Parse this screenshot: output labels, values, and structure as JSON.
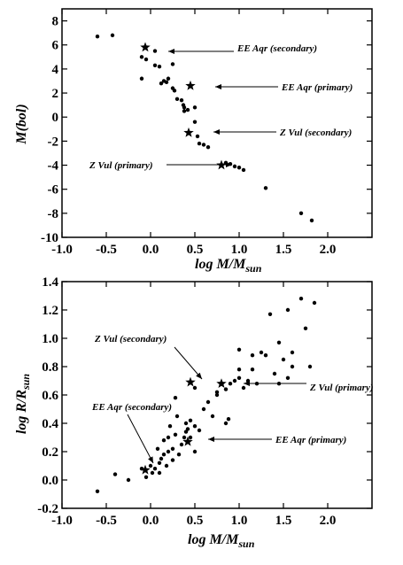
{
  "chart_data": [
    {
      "type": "scatter",
      "xlabel": "log M/M",
      "xlabel_sub": "sun",
      "ylabel": "M(bol)",
      "xlim": [
        -1.0,
        2.5
      ],
      "ylim": [
        -10,
        9
      ],
      "xticks": [
        "-1.0",
        "-0.5",
        "0.0",
        "0.5",
        "1.0",
        "1.5",
        "2.0"
      ],
      "xtick_values": [
        -1.0,
        -0.5,
        0.0,
        0.5,
        1.0,
        1.5,
        2.0
      ],
      "yticks": [
        "8",
        "6",
        "4",
        "2",
        "0",
        "-2",
        "-4",
        "-6",
        "-8",
        "-10"
      ],
      "ytick_values": [
        8,
        6,
        4,
        2,
        0,
        -2,
        -4,
        -6,
        -8,
        -10
      ],
      "points": [
        [
          -0.6,
          6.7
        ],
        [
          -0.43,
          6.8
        ],
        [
          -0.1,
          5.0
        ],
        [
          -0.05,
          4.8
        ],
        [
          -0.1,
          3.2
        ],
        [
          0.05,
          5.5
        ],
        [
          0.05,
          4.3
        ],
        [
          0.1,
          4.2
        ],
        [
          0.15,
          3.0
        ],
        [
          0.12,
          2.8
        ],
        [
          0.2,
          3.2
        ],
        [
          0.18,
          2.9
        ],
        [
          0.25,
          4.4
        ],
        [
          0.25,
          2.4
        ],
        [
          0.27,
          2.2
        ],
        [
          0.3,
          1.5
        ],
        [
          0.35,
          1.4
        ],
        [
          0.37,
          1.0
        ],
        [
          0.38,
          0.8
        ],
        [
          0.42,
          0.6
        ],
        [
          0.38,
          0.5
        ],
        [
          0.5,
          0.8
        ],
        [
          0.5,
          -0.4
        ],
        [
          0.53,
          -1.6
        ],
        [
          0.55,
          -2.2
        ],
        [
          0.6,
          -2.3
        ],
        [
          0.65,
          -2.5
        ],
        [
          0.85,
          -3.8
        ],
        [
          0.9,
          -3.9
        ],
        [
          0.95,
          -4.1
        ],
        [
          1.0,
          -4.2
        ],
        [
          1.05,
          -4.4
        ],
        [
          1.3,
          -5.9
        ],
        [
          1.7,
          -8.0
        ],
        [
          1.82,
          -8.6
        ]
      ],
      "stars": [
        {
          "x": -0.06,
          "y": 5.8,
          "label": "EE Aqr (secondary)"
        },
        {
          "x": 0.45,
          "y": 2.6,
          "label": "EE Aqr (primary)"
        },
        {
          "x": 0.43,
          "y": -1.3,
          "label": "Z Vul (secondary)"
        },
        {
          "x": 0.8,
          "y": -4.0,
          "label": "Z Vul (primary)"
        }
      ]
    },
    {
      "type": "scatter",
      "xlabel": "log M/M",
      "xlabel_sub": "sun",
      "ylabel": "log R/R",
      "ylabel_sub": "sun",
      "xlim": [
        -1.0,
        2.5
      ],
      "ylim": [
        -0.2,
        1.4
      ],
      "xticks": [
        "-1.0",
        "-0.5",
        "0.0",
        "0.5",
        "1.0",
        "1.5",
        "2.0"
      ],
      "xtick_values": [
        -1.0,
        -0.5,
        0.0,
        0.5,
        1.0,
        1.5,
        2.0
      ],
      "yticks": [
        "1.4",
        "1.2",
        "1.0",
        "0.8",
        "0.6",
        "0.4",
        "0.2",
        "0.0",
        "-0.2"
      ],
      "ytick_values": [
        1.4,
        1.2,
        1.0,
        0.8,
        0.6,
        0.4,
        0.2,
        0.0,
        -0.2
      ],
      "points": [
        [
          -0.6,
          -0.08
        ],
        [
          -0.4,
          0.04
        ],
        [
          -0.25,
          0.0
        ],
        [
          -0.1,
          0.08
        ],
        [
          -0.05,
          0.02
        ],
        [
          0.0,
          0.1
        ],
        [
          0.02,
          0.05
        ],
        [
          0.05,
          0.08
        ],
        [
          0.08,
          0.22
        ],
        [
          0.1,
          0.12
        ],
        [
          0.1,
          0.05
        ],
        [
          0.12,
          0.15
        ],
        [
          0.15,
          0.18
        ],
        [
          0.15,
          0.28
        ],
        [
          0.18,
          0.1
        ],
        [
          0.2,
          0.3
        ],
        [
          0.2,
          0.2
        ],
        [
          0.22,
          0.38
        ],
        [
          0.25,
          0.22
        ],
        [
          0.25,
          0.14
        ],
        [
          0.28,
          0.32
        ],
        [
          0.3,
          0.45
        ],
        [
          0.32,
          0.18
        ],
        [
          0.35,
          0.25
        ],
        [
          0.38,
          0.3
        ],
        [
          0.4,
          0.4
        ],
        [
          0.4,
          0.34
        ],
        [
          0.42,
          0.36
        ],
        [
          0.45,
          0.42
        ],
        [
          0.45,
          0.3
        ],
        [
          0.5,
          0.2
        ],
        [
          0.5,
          0.38
        ],
        [
          0.55,
          0.35
        ],
        [
          0.28,
          0.58
        ],
        [
          0.5,
          0.65
        ],
        [
          0.6,
          0.5
        ],
        [
          0.65,
          0.55
        ],
        [
          0.7,
          0.45
        ],
        [
          0.75,
          0.62
        ],
        [
          0.75,
          0.6
        ],
        [
          0.85,
          0.4
        ],
        [
          0.88,
          0.43
        ],
        [
          0.85,
          0.64
        ],
        [
          0.9,
          0.68
        ],
        [
          0.95,
          0.7
        ],
        [
          1.0,
          0.72
        ],
        [
          1.0,
          0.78
        ],
        [
          1.05,
          0.65
        ],
        [
          1.1,
          0.7
        ],
        [
          1.15,
          0.78
        ],
        [
          1.2,
          0.68
        ],
        [
          1.25,
          0.9
        ],
        [
          1.3,
          0.88
        ],
        [
          1.4,
          0.75
        ],
        [
          1.45,
          0.68
        ],
        [
          1.5,
          0.85
        ],
        [
          1.55,
          0.72
        ],
        [
          1.6,
          0.8
        ],
        [
          1.45,
          0.97
        ],
        [
          1.15,
          0.88
        ],
        [
          1.0,
          0.92
        ],
        [
          1.6,
          0.9
        ],
        [
          1.35,
          1.17
        ],
        [
          1.55,
          1.2
        ],
        [
          1.7,
          1.28
        ],
        [
          1.85,
          1.25
        ],
        [
          1.75,
          1.07
        ],
        [
          1.8,
          0.8
        ]
      ],
      "stars": [
        {
          "x": 0.45,
          "y": 0.69,
          "label": "Z Vul (secondary)"
        },
        {
          "x": 0.8,
          "y": 0.68,
          "label": "Z Vul (primary)"
        },
        {
          "x": 0.42,
          "y": 0.27,
          "label": "EE Aqr (primary)"
        },
        {
          "x": -0.06,
          "y": 0.07,
          "label": "EE Aqr (secondary)"
        }
      ]
    }
  ]
}
